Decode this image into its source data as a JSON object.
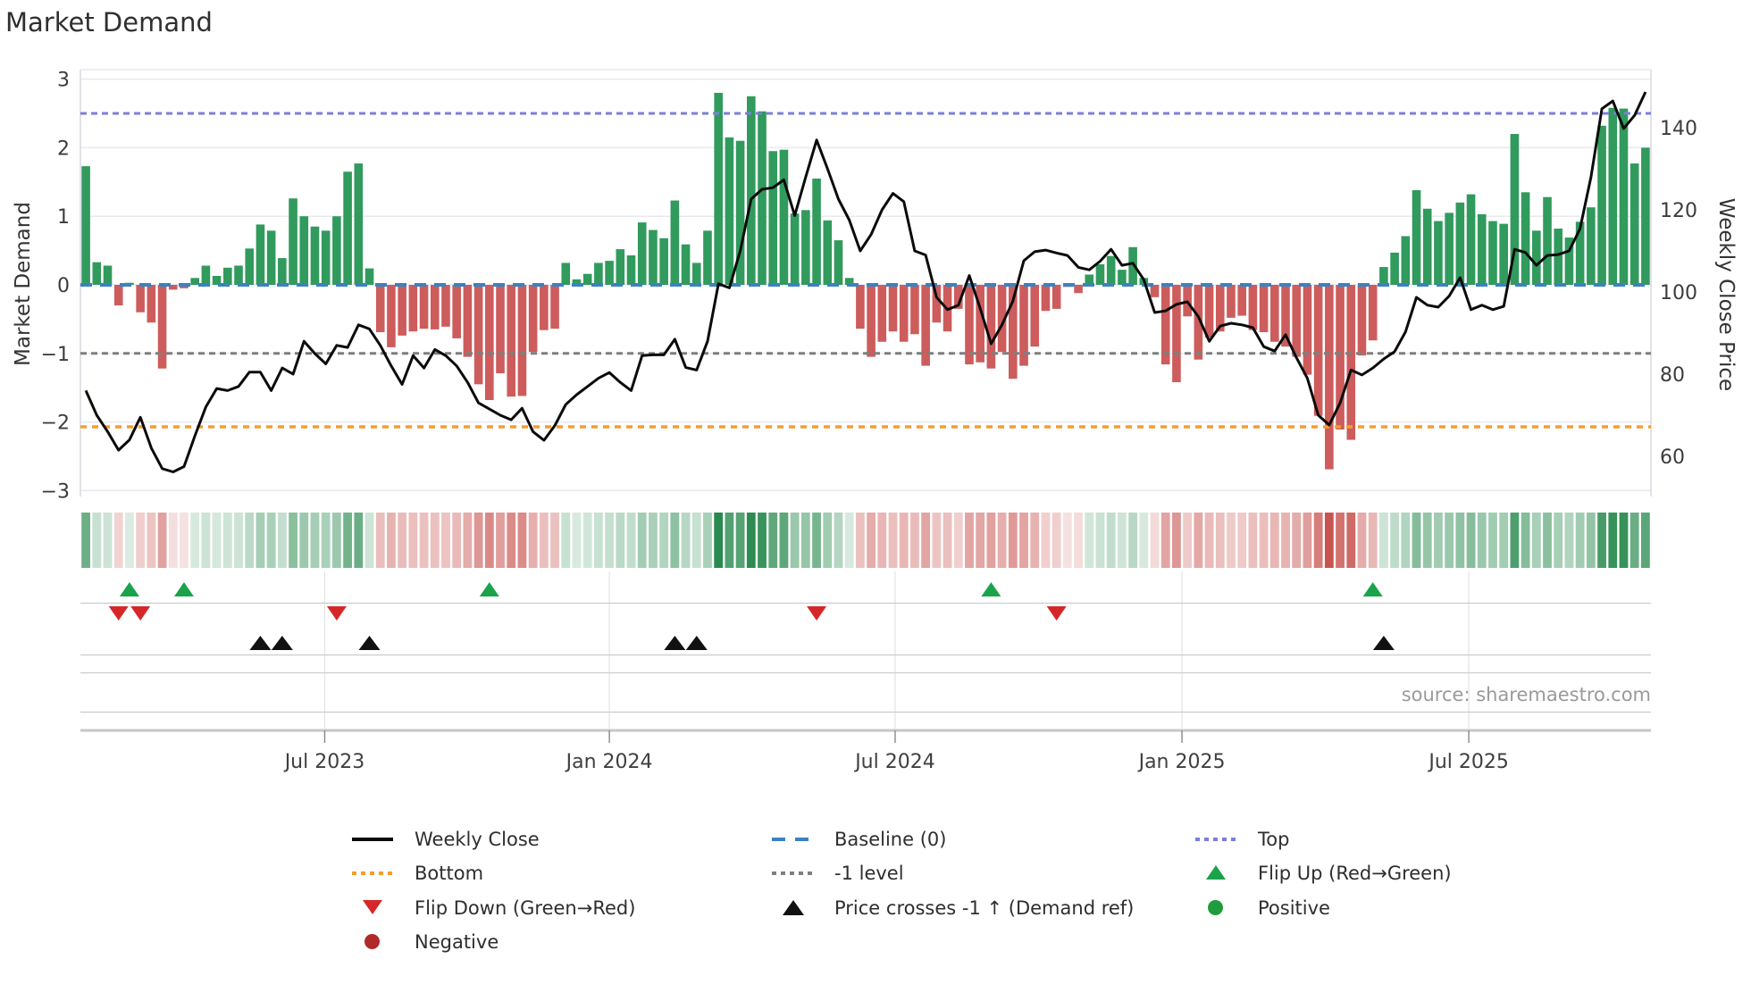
{
  "title": "Market Demand",
  "source": "source: sharemaestro.com",
  "left_axis": {
    "label": "Market Demand",
    "tick_labels": [
      "3",
      "2",
      "1",
      "0",
      "−1",
      "−2",
      "−3"
    ],
    "tick_values": [
      3,
      2,
      1,
      0,
      -1,
      -2,
      -3
    ]
  },
  "right_axis": {
    "label": "Weekly Close Price",
    "tick_labels": [
      "140",
      "120",
      "100",
      "80",
      "60"
    ],
    "tick_values": [
      140,
      120,
      100,
      80,
      60
    ]
  },
  "x_axis": {
    "tick_labels": [
      "Jul 2023",
      "Jan 2024",
      "Jul 2024",
      "Jan 2025",
      "Jul 2025"
    ],
    "tick_weeks": [
      21.9,
      48.0,
      74.2,
      100.5,
      126.8
    ]
  },
  "colors": {
    "bar_positive": "#319a5d",
    "bar_negative": "#cd5c5c",
    "price_line": "#0b0b0b",
    "baseline": "#3b82c0",
    "top_level": "#7b7fd8",
    "bottom_level": "#f59d2b",
    "minus_one_level": "#7f7f7f",
    "flip_up": "#1aa34a",
    "flip_down": "#d62728",
    "price_cross": "#111111",
    "positive_dot": "#1f9c3d",
    "negative_dot": "#b02a2a",
    "grid": "#e9e9f0",
    "spine": "#d9d9e0",
    "row_line": "#cccccc",
    "axis_spine": "#c6c6c6",
    "tick": "#888888",
    "heat_green": "40,138,78",
    "heat_red": "198,78,74"
  },
  "legend": {
    "items": [
      {
        "row": 0,
        "col": 0,
        "swatch": "line-black",
        "name": "weekly-close",
        "label": "Weekly Close"
      },
      {
        "row": 0,
        "col": 1,
        "swatch": "dash-blue",
        "name": "baseline",
        "label": "Baseline (0)"
      },
      {
        "row": 0,
        "col": 2,
        "swatch": "dot-purple",
        "name": "top",
        "label": "Top"
      },
      {
        "row": 1,
        "col": 0,
        "swatch": "dot-orange",
        "name": "bottom",
        "label": "Bottom"
      },
      {
        "row": 1,
        "col": 1,
        "swatch": "dot-gray",
        "name": "minus-one-level",
        "label": "-1 level"
      },
      {
        "row": 1,
        "col": 2,
        "swatch": "tri-up-green",
        "name": "flip-up",
        "label": "Flip Up (Red→Green)"
      },
      {
        "row": 2,
        "col": 0,
        "swatch": "tri-down-red",
        "name": "flip-down",
        "label": "Flip Down (Green→Red)"
      },
      {
        "row": 2,
        "col": 1,
        "swatch": "tri-up-black",
        "name": "price-crosses",
        "label": "Price crosses -1 ↑ (Demand ref)"
      },
      {
        "row": 2,
        "col": 2,
        "swatch": "circle-green",
        "name": "positive",
        "label": "Positive"
      },
      {
        "row": 3,
        "col": 0,
        "swatch": "circle-darkred",
        "name": "negative",
        "label": "Negative"
      }
    ]
  },
  "chart_data": {
    "type": "combo",
    "x_unit": "weeks",
    "n_weeks": 144,
    "left_ylim": [
      -3,
      3
    ],
    "right_ylim": [
      55,
      152
    ],
    "levels": {
      "top": 2.5,
      "baseline": 0,
      "minus_one": -1,
      "bottom": -2.07
    },
    "grid": "horizontal-only",
    "legend_position": "bottom",
    "series": [
      {
        "name": "Market Demand",
        "type": "bar",
        "axis": "left",
        "values": [
          1.73,
          0.33,
          0.28,
          -0.3,
          0.03,
          -0.4,
          -0.55,
          -1.22,
          -0.07,
          -0.05,
          0.1,
          0.28,
          0.13,
          0.25,
          0.28,
          0.53,
          0.88,
          0.79,
          0.39,
          1.26,
          1.0,
          0.85,
          0.79,
          1.0,
          1.65,
          1.77,
          0.24,
          -0.69,
          -0.91,
          -0.74,
          -0.68,
          -0.64,
          -0.65,
          -0.61,
          -0.78,
          -1.05,
          -1.45,
          -1.68,
          -1.29,
          -1.63,
          -1.62,
          -0.98,
          -0.66,
          -0.64,
          0.32,
          0.08,
          0.16,
          0.32,
          0.35,
          0.52,
          0.43,
          0.91,
          0.8,
          0.68,
          1.23,
          0.59,
          0.32,
          0.79,
          2.8,
          2.15,
          2.1,
          2.75,
          2.53,
          1.95,
          1.97,
          1.04,
          1.09,
          1.55,
          0.94,
          0.65,
          0.1,
          -0.64,
          -1.05,
          -0.83,
          -0.68,
          -0.83,
          -0.72,
          -1.18,
          -0.55,
          -0.68,
          -0.35,
          -1.16,
          -1.13,
          -1.22,
          -0.98,
          -1.37,
          -1.18,
          -0.9,
          -0.38,
          -0.35,
          -0.03,
          -0.12,
          0.15,
          0.3,
          0.42,
          0.22,
          0.55,
          0.1,
          -0.18,
          -1.16,
          -1.42,
          -0.46,
          -1.09,
          -0.77,
          -0.68,
          -0.48,
          -0.45,
          -0.66,
          -0.69,
          -0.83,
          -0.9,
          -1.05,
          -1.31,
          -1.91,
          -2.69,
          -2.11,
          -2.26,
          -1.03,
          -0.81,
          0.26,
          0.47,
          0.71,
          1.38,
          1.11,
          0.93,
          1.05,
          1.2,
          1.32,
          1.03,
          0.93,
          0.89,
          2.2,
          1.35,
          0.79,
          1.28,
          0.82,
          0.69,
          0.92,
          1.13,
          2.32,
          2.58,
          2.57,
          1.77,
          2.0
        ]
      },
      {
        "name": "Weekly Close",
        "type": "line",
        "axis": "right",
        "values": [
          76,
          70,
          66,
          61.5,
          64,
          69.5,
          62,
          57,
          56.2,
          57.5,
          65,
          72,
          76.5,
          76,
          77,
          80.5,
          80.5,
          76,
          81.5,
          80,
          88,
          85,
          82.5,
          87,
          86.5,
          92,
          91,
          87,
          82,
          77.5,
          84.5,
          81.5,
          86,
          84.5,
          82,
          78,
          73,
          71.5,
          70,
          68.9,
          71.7,
          66,
          63.9,
          67.5,
          72.6,
          75,
          77,
          79,
          80.4,
          78,
          76,
          84.5,
          84.7,
          84.7,
          88.5,
          81.6,
          81,
          88,
          102,
          101,
          110,
          122.6,
          125,
          125.4,
          127.3,
          118.6,
          128,
          137,
          130,
          122.6,
          117.5,
          110,
          114,
          120,
          124,
          122,
          110,
          109,
          98.7,
          95.7,
          96.8,
          104,
          96,
          87.4,
          92,
          97.8,
          107.6,
          109.8,
          110.2,
          109.5,
          108.9,
          106,
          105.4,
          107.5,
          110.4,
          106.5,
          107,
          103,
          95,
          95.4,
          97,
          97.6,
          94,
          88,
          91.7,
          92.4,
          92,
          91.3,
          86.7,
          85.6,
          89.6,
          84,
          79,
          70,
          67.6,
          73,
          81,
          79.8,
          81.5,
          83.7,
          85.5,
          90.3,
          98.7,
          96.8,
          96.3,
          99,
          103.5,
          95.7,
          96.8,
          95.7,
          96.5,
          110.4,
          109.6,
          106.5,
          108.9,
          109.1,
          110,
          115.4,
          128,
          144.6,
          146.5,
          139.8,
          143,
          148.7
        ]
      }
    ],
    "heat_strip": "sign and intensity of Market Demand per week",
    "markers": {
      "flip_up_weeks": [
        4,
        9,
        37,
        83,
        118
      ],
      "flip_down_weeks": [
        3,
        5,
        23,
        67,
        89
      ],
      "price_cross_weeks": [
        16,
        18,
        26,
        54,
        56,
        119
      ]
    }
  }
}
